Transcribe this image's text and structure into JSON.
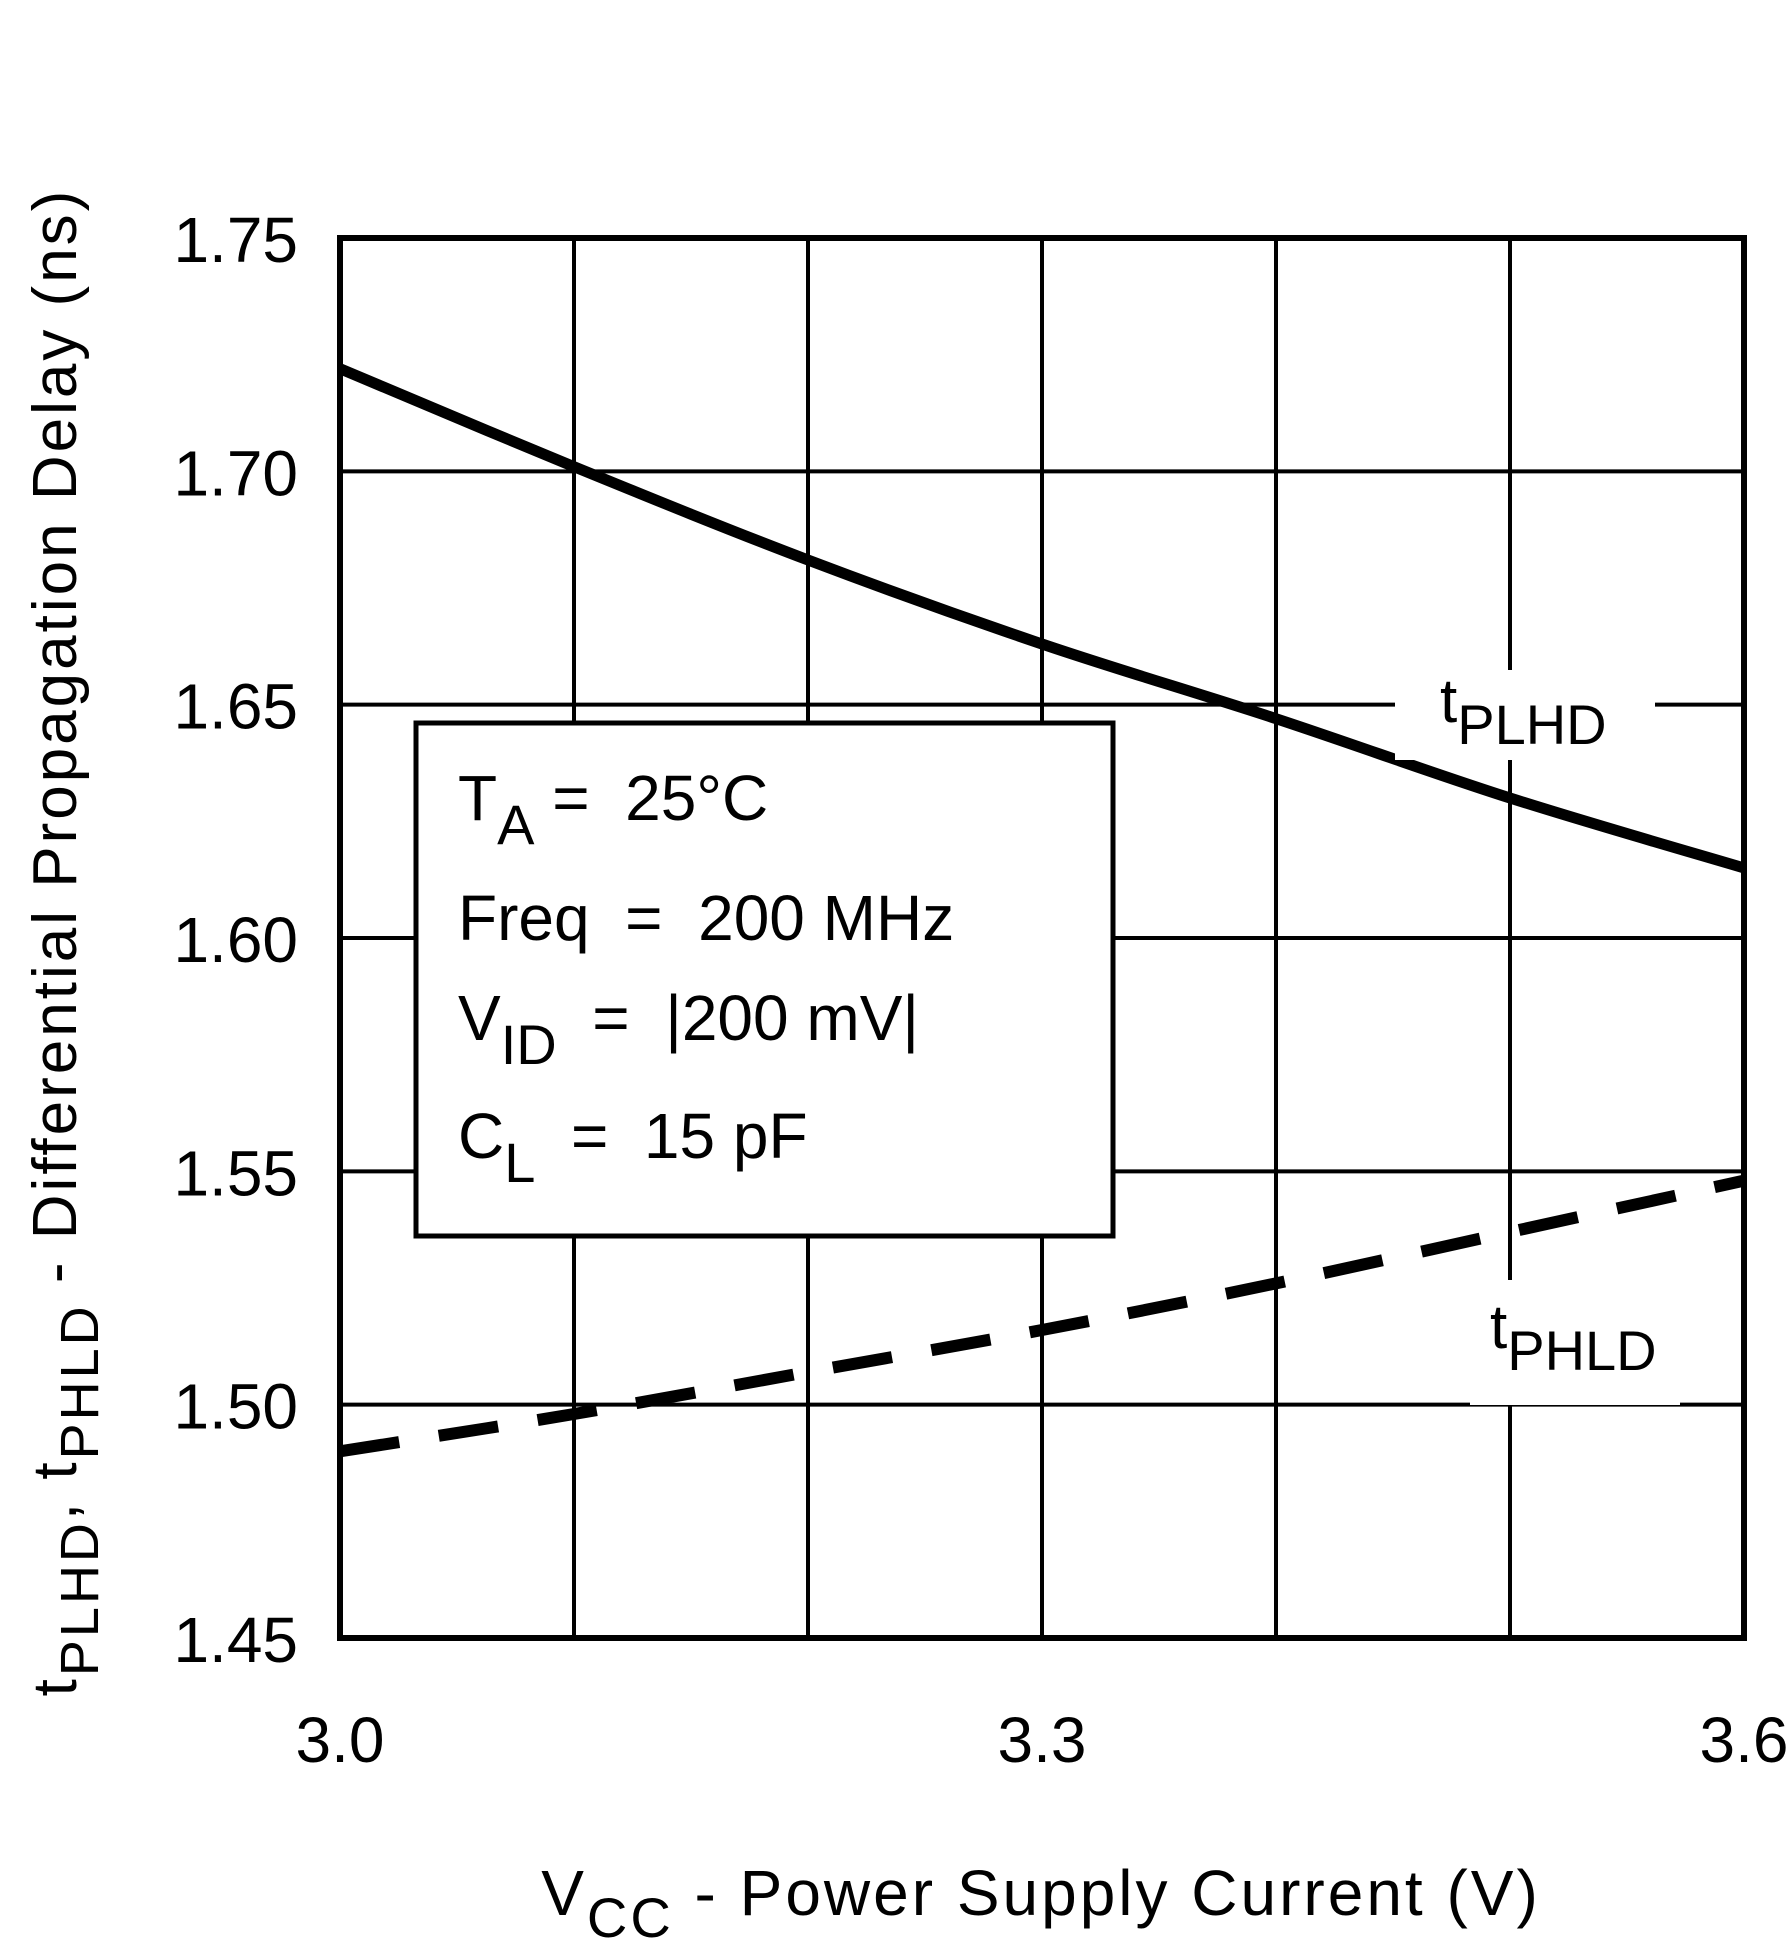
{
  "chart_data": {
    "type": "line",
    "title": "",
    "xlabel": {
      "main": "V",
      "sub": "CC",
      "rest": " - Power Supply Current (V)"
    },
    "ylabel": {
      "t1": "t",
      "s1": "PLHD",
      "mid": ", t",
      "s2": "PHLD",
      "rest": " - Differential Propagation Delay (ns)"
    },
    "xlim": [
      3.0,
      3.6
    ],
    "ylim": [
      1.45,
      1.75
    ],
    "x_grid_step": 0.1,
    "y_grid_step": 0.05,
    "grid": true,
    "x_ticks": [
      "3.0",
      "3.3",
      "3.6"
    ],
    "x_tick_values": [
      3.0,
      3.3,
      3.6
    ],
    "y_ticks": [
      "1.45",
      "1.50",
      "1.55",
      "1.60",
      "1.65",
      "1.70",
      "1.75"
    ],
    "y_tick_values": [
      1.45,
      1.5,
      1.55,
      1.6,
      1.65,
      1.7,
      1.75
    ],
    "x": [
      3.0,
      3.1,
      3.2,
      3.3,
      3.4,
      3.5,
      3.6
    ],
    "series": [
      {
        "name": "tPLHD",
        "label_main": "t",
        "label_sub": "PLHD",
        "style": "solid",
        "color": "#000000",
        "values": [
          1.722,
          1.701,
          1.681,
          1.663,
          1.647,
          1.63,
          1.615
        ]
      },
      {
        "name": "tPHLD",
        "label_main": "t",
        "label_sub": "PHLD",
        "style": "dashed",
        "color": "#000000",
        "values": [
          1.49,
          1.498,
          1.507,
          1.516,
          1.526,
          1.537,
          1.548
        ]
      }
    ],
    "conditions": [
      {
        "main": "T",
        "sub": "A",
        "rest": " =  25°C"
      },
      {
        "main": "Freq",
        "sub": "",
        "rest": "  =  200 MHz"
      },
      {
        "main": "V",
        "sub": "ID",
        "rest": "  =  |200 mV|"
      },
      {
        "main": "C",
        "sub": "L",
        "rest": "  =  15 pF"
      }
    ]
  }
}
